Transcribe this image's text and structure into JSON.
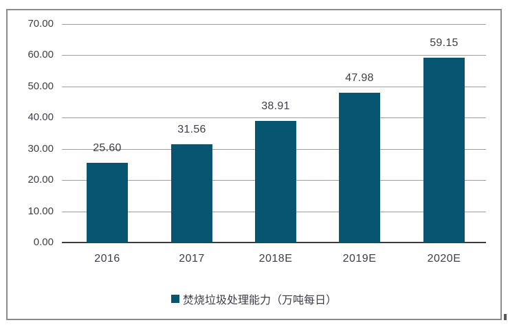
{
  "chart_data": {
    "type": "bar",
    "title": "",
    "xlabel": "",
    "ylabel": "",
    "categories": [
      "2016",
      "2017",
      "2018E",
      "2019E",
      "2020E"
    ],
    "values": [
      25.6,
      31.56,
      38.91,
      47.98,
      59.15
    ],
    "value_labels": [
      "25.60",
      "31.56",
      "38.91",
      "47.98",
      "59.15"
    ],
    "legend_label": "焚烧垃圾处理能力（万吨每日）",
    "legend_position": "bottom",
    "ylim": [
      0,
      70
    ],
    "ytick_step": 10,
    "ytick_labels": [
      "0.00",
      "10.00",
      "20.00",
      "30.00",
      "40.00",
      "50.00",
      "60.00",
      "70.00"
    ],
    "grid": true,
    "colors": {
      "bar": "#075570",
      "gridline": "#9c9c9c",
      "axis_line": "#3b3b3b",
      "text": "#3d3d47",
      "frame_border": "#8a8a8a",
      "background": "#ffffff"
    }
  }
}
